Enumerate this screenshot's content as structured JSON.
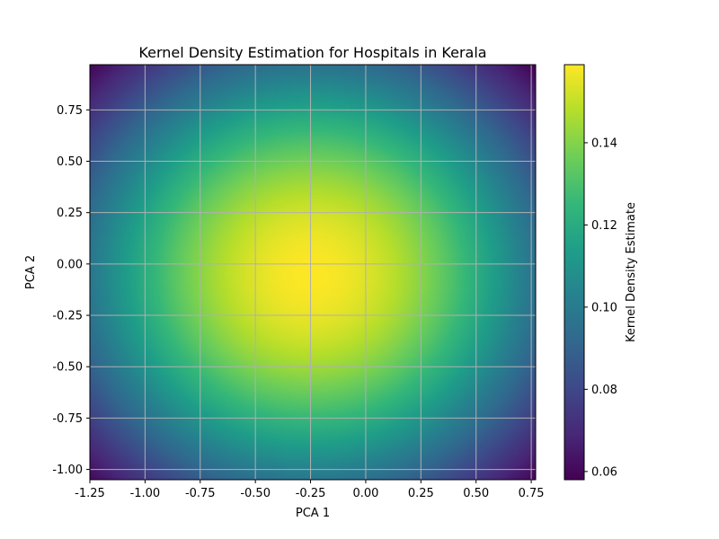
{
  "chart_data": {
    "type": "heatmap",
    "title": "Kernel Density Estimation for Hospitals in Kerala",
    "xlabel": "PCA 1",
    "ylabel": "PCA 2",
    "xlim": [
      -1.25,
      0.77
    ],
    "ylim": [
      -1.05,
      0.97
    ],
    "xticks": [
      -1.25,
      -1.0,
      -0.75,
      -0.5,
      -0.25,
      0.0,
      0.25,
      0.5,
      0.75
    ],
    "xtick_labels": [
      "-1.25",
      "-1.00",
      "-0.75",
      "-0.50",
      "-0.25",
      "0.00",
      "0.25",
      "0.50",
      "0.75"
    ],
    "yticks": [
      -1.0,
      -0.75,
      -0.5,
      -0.25,
      0.0,
      0.25,
      0.5,
      0.75
    ],
    "ytick_labels": [
      "-1.00",
      "-0.75",
      "-0.50",
      "-0.25",
      "0.00",
      "0.25",
      "0.50",
      "0.75"
    ],
    "grid": true,
    "colormap": "viridis",
    "colorbar": {
      "label": "Kernel Density Estimate",
      "range": [
        0.058,
        0.159
      ],
      "ticks": [
        0.06,
        0.08,
        0.1,
        0.12,
        0.14
      ],
      "tick_labels": [
        "0.06",
        "0.08",
        "0.10",
        "0.12",
        "0.14"
      ]
    },
    "density_peak": {
      "x": -0.25,
      "y": -0.05,
      "value": 0.159
    },
    "density_min_corner_value": 0.058
  },
  "colors": {
    "grid": "#b0b0b0",
    "viridis_stops": [
      "#440154",
      "#482878",
      "#3e4989",
      "#31688e",
      "#26828e",
      "#1f9e89",
      "#35b779",
      "#6ece58",
      "#b5de2b",
      "#fde725"
    ]
  }
}
